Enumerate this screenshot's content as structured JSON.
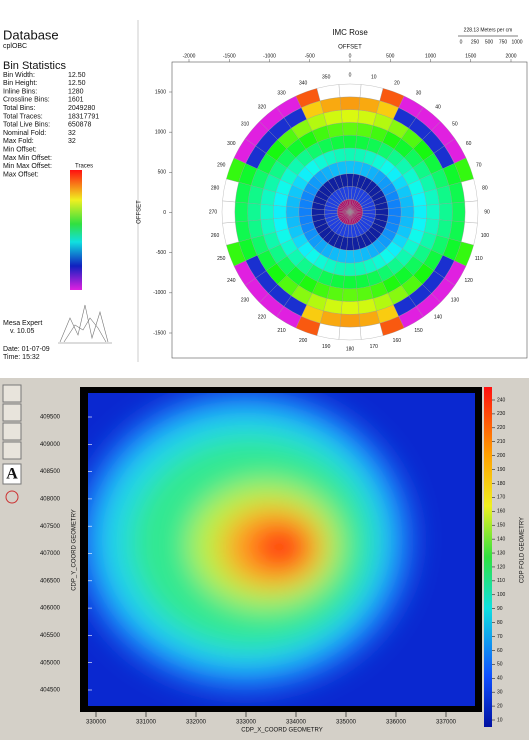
{
  "database": {
    "title": "Database",
    "name": "cplOBC"
  },
  "bin_statistics": {
    "title": "Bin Statistics",
    "rows": [
      {
        "label": "Bin Width:",
        "value": "12.50"
      },
      {
        "label": "Bin Height:",
        "value": "12.50"
      },
      {
        "label": "Inline Bins:",
        "value": "1280"
      },
      {
        "label": "Crossline Bins:",
        "value": "1601"
      },
      {
        "label": "Total Bins:",
        "value": "2049280"
      },
      {
        "label": "Total Traces:",
        "value": "18317791"
      },
      {
        "label": "Total Live Bins:",
        "value": "650878"
      },
      {
        "label": "Nominal Fold:",
        "value": "32"
      },
      {
        "label": "Max Fold:",
        "value": "32"
      },
      {
        "label": "Min Offset:"
      },
      {
        "label": "Max Min Offset:"
      },
      {
        "label": "Min Max Offset:"
      },
      {
        "label": "Max Offset:"
      }
    ]
  },
  "traces_legend": "Traces",
  "footer": {
    "product": "Mesa Expert",
    "version": "v. 10.05",
    "date": "Date: 01-07-09",
    "time": "Time: 15:32"
  },
  "rose": {
    "title": "IMC Rose",
    "scale_label": "228.13 Meters per cm",
    "scale_ticks": [
      0,
      250,
      500,
      750,
      1000
    ],
    "x_label": "OFFSET",
    "y_label": "OFFSET",
    "x_ticks": [
      -2000,
      -1500,
      -1000,
      -500,
      0,
      500,
      1000,
      1500,
      2000
    ],
    "y_ticks": [
      1500,
      1000,
      500,
      0,
      -500,
      -1000,
      -1500
    ],
    "azimuths": [
      0,
      10,
      20,
      30,
      40,
      50,
      60,
      70,
      80,
      90,
      100,
      110,
      120,
      130,
      140,
      150,
      160,
      170,
      180,
      190,
      200,
      210,
      220,
      230,
      240,
      250,
      260,
      270,
      280,
      290,
      300,
      310,
      320,
      330,
      340,
      350
    ]
  },
  "heatmap": {
    "x_ticks": [
      330000,
      331000,
      332000,
      333000,
      334000,
      335000,
      336000,
      337000
    ],
    "y_ticks": [
      409500,
      409000,
      408500,
      408000,
      407500,
      407000,
      406500,
      406000,
      405500,
      405000,
      404500
    ],
    "x_label": "CDP_X_COORD GEOMETRY",
    "y_label": "CDP_Y_COORD GEOMETRY",
    "colorbar_label": "CDP FOLD GEOMETRY",
    "colorbar_ticks": [
      240,
      230,
      220,
      210,
      200,
      190,
      180,
      170,
      160,
      150,
      140,
      130,
      120,
      110,
      100,
      90,
      80,
      70,
      60,
      50,
      40,
      30,
      20,
      10
    ]
  },
  "toolbar": {
    "text_tool": "A"
  }
}
